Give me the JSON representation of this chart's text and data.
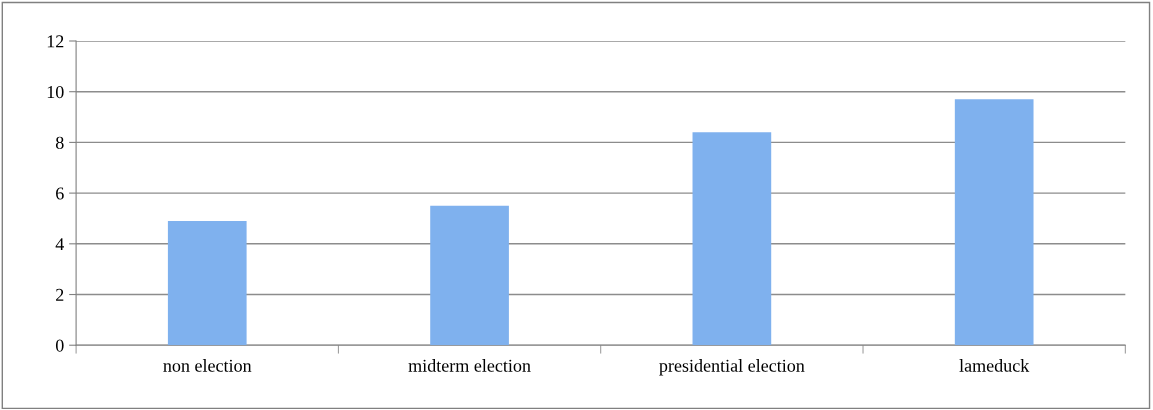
{
  "chart_data": {
    "type": "bar",
    "categories": [
      "non election",
      "midterm election",
      "presidential election",
      "lameduck"
    ],
    "values": [
      4.9,
      5.5,
      8.4,
      9.7
    ],
    "color": "#7fb1ee",
    "ylim": [
      0,
      12
    ],
    "yticks": [
      0,
      2,
      4,
      6,
      8,
      10,
      12
    ],
    "grid": "y"
  }
}
